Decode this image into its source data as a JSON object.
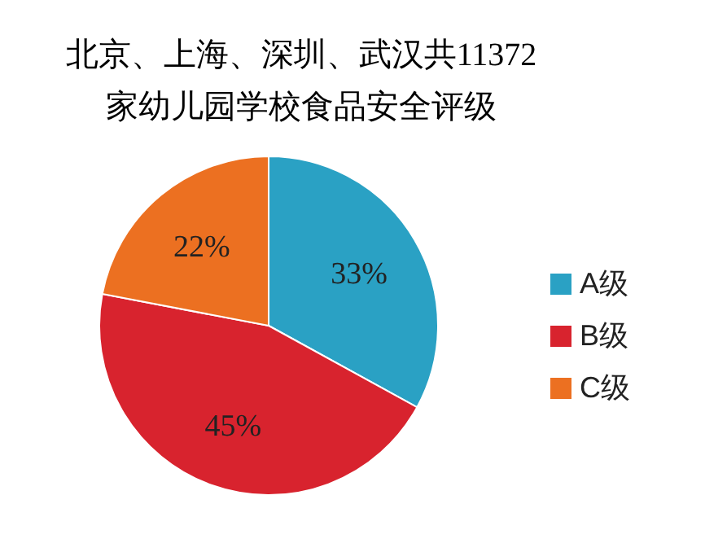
{
  "chart_data": {
    "type": "pie",
    "title": "北京、上海、深圳、武汉共11372\n家幼儿园学校食品安全评级",
    "categories": [
      "A级",
      "B级",
      "C级"
    ],
    "values": [
      33,
      45,
      22
    ],
    "value_labels": [
      "33%",
      "45%",
      "22%"
    ],
    "colors": [
      "#2aa1c4",
      "#d8232e",
      "#ec7021"
    ],
    "legend": "right"
  }
}
